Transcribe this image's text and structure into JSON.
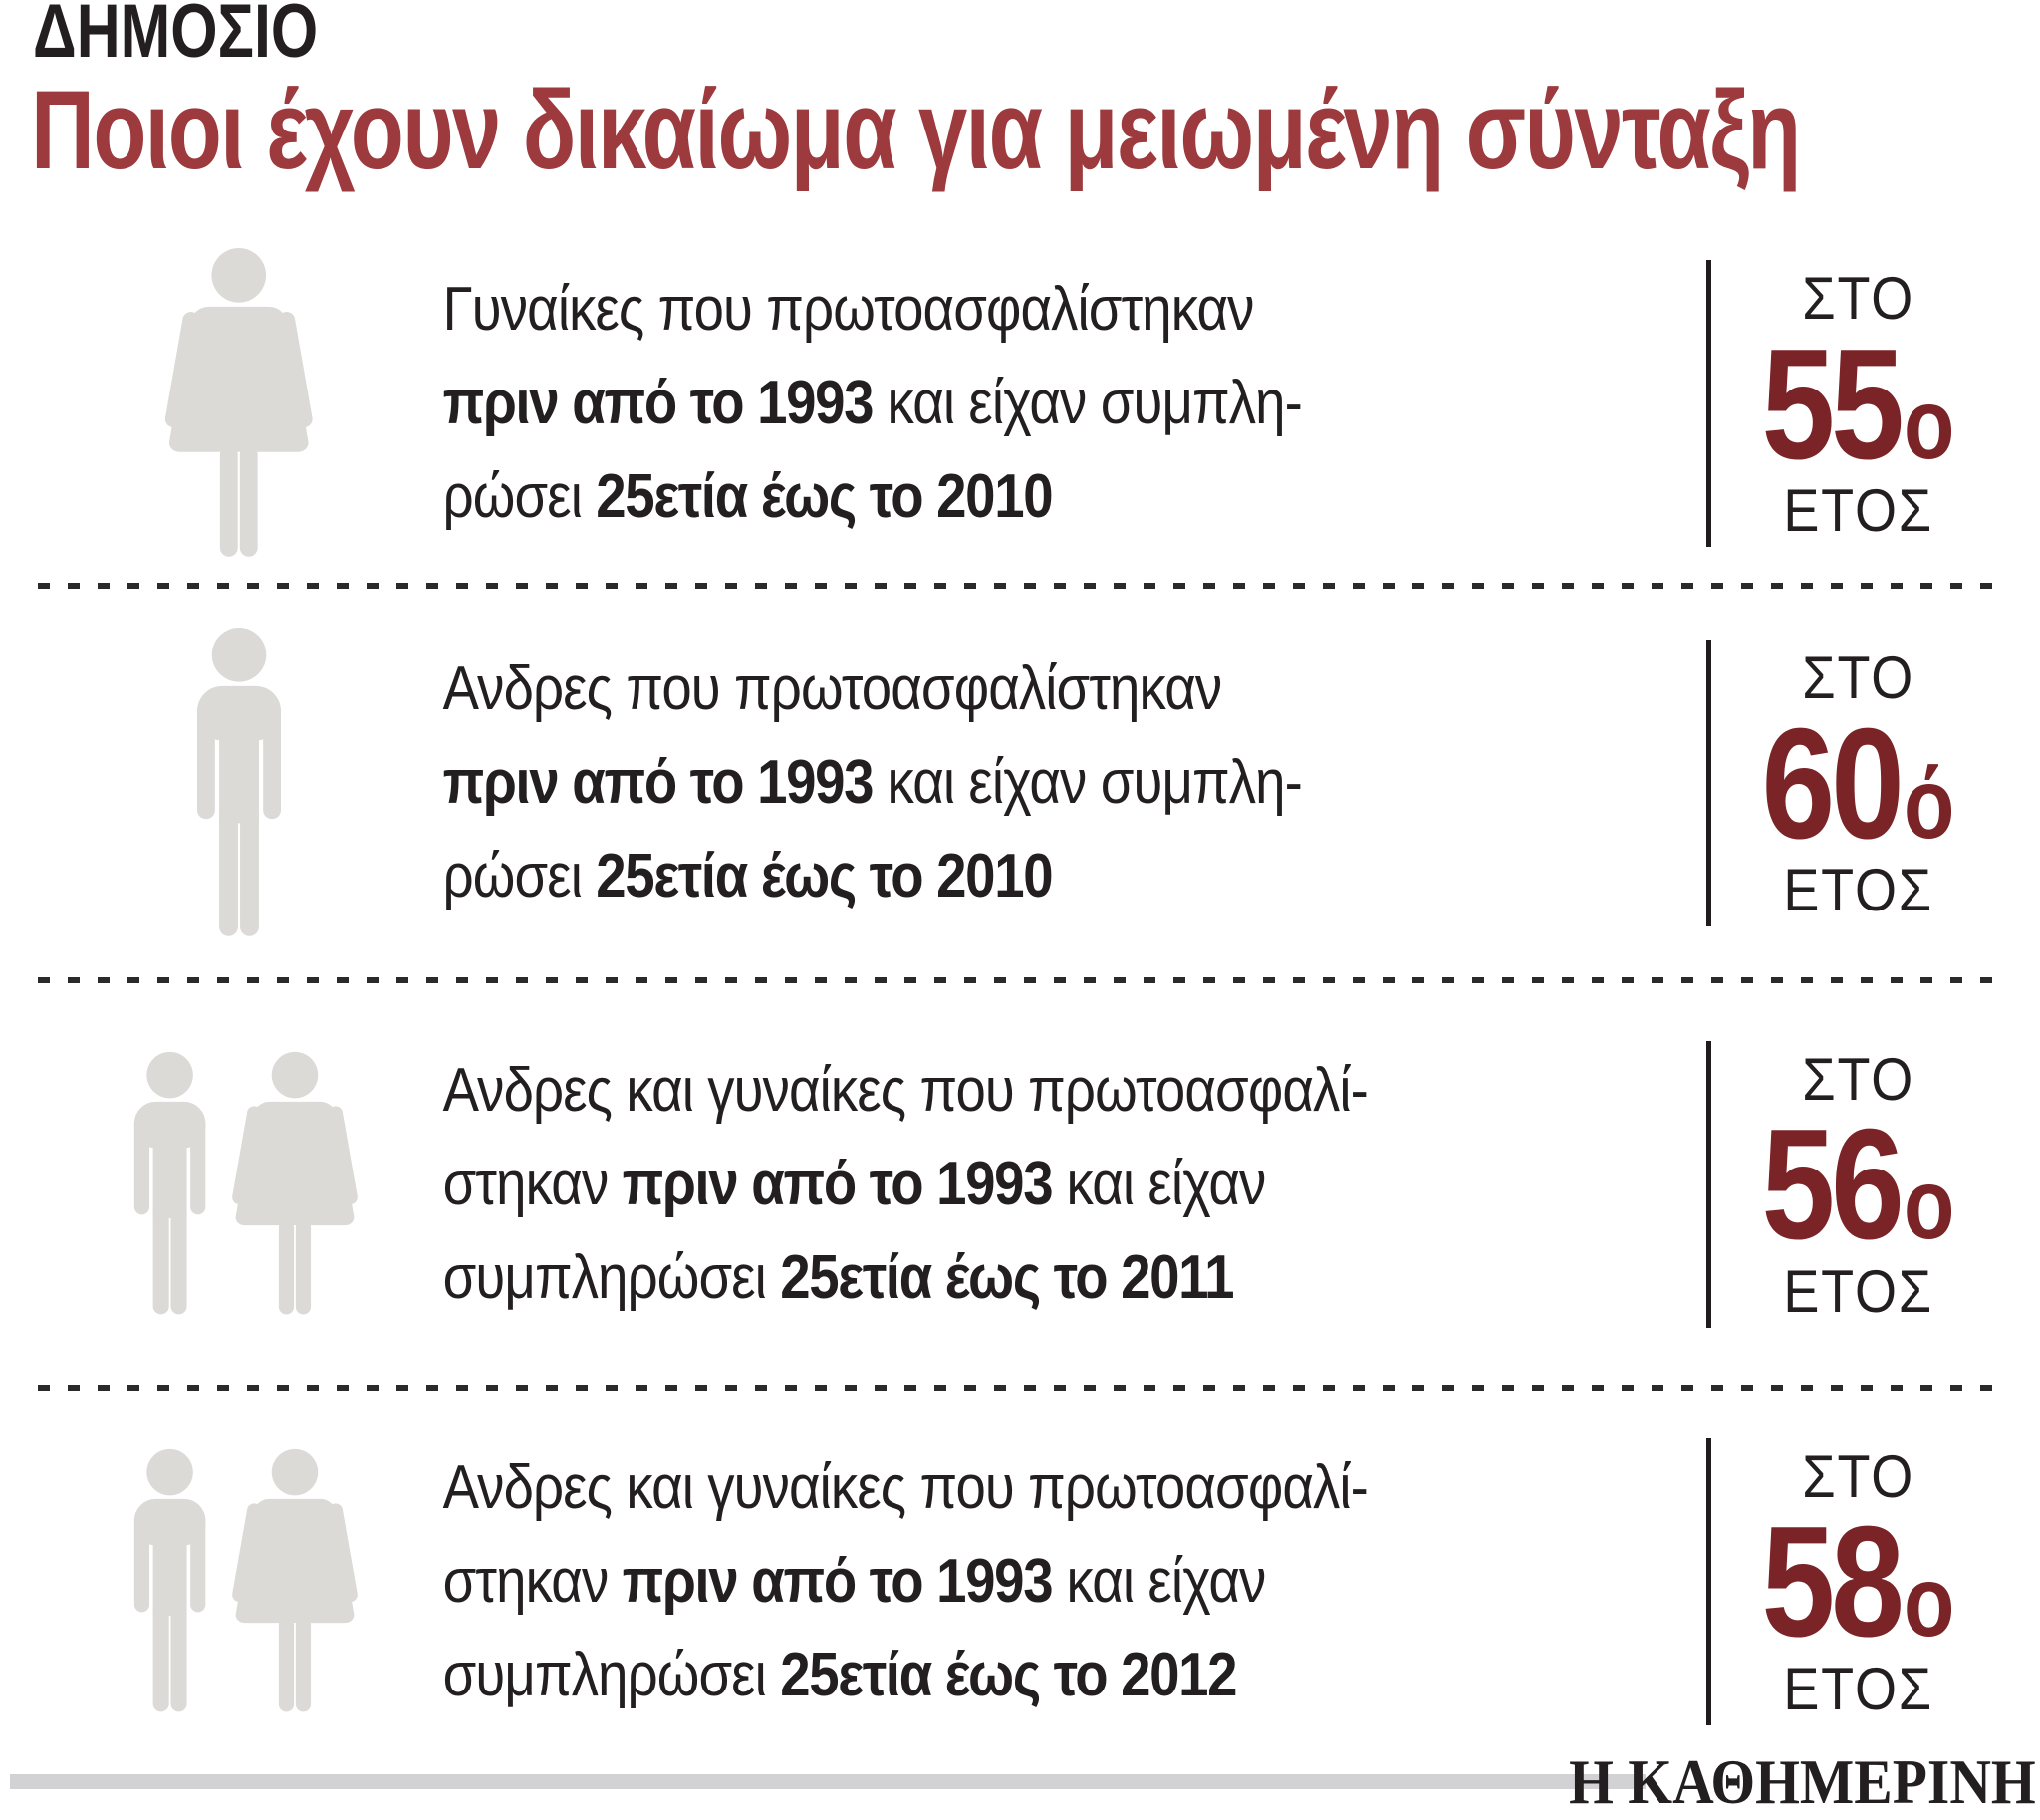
{
  "kicker": "ΔΗΜΟΣΙΟ",
  "title": "Ποιοι έχουν δικαίωμα για μειωμένη σύνταξη",
  "labels": {
    "sto": "ΣΤΟ",
    "etos": "ΕΤΟΣ"
  },
  "colors": {
    "title_red": "#9c3a3e",
    "number_maroon": "#7b2428",
    "text_black": "#231f20",
    "icon_gray": "#dbdad7",
    "footer_bar": "#d2d2d4"
  },
  "rows": [
    {
      "icon": "woman",
      "lines": [
        [
          {
            "t": "Γυναίκες που πρωτοασφαλίστηκαν",
            "b": false
          }
        ],
        [
          {
            "t": "πριν από το 1993",
            "b": true
          },
          {
            "t": " και είχαν συμπλη-",
            "b": false
          }
        ],
        [
          {
            "t": "ρώσει ",
            "b": false
          },
          {
            "t": "25ετία έως το 2010",
            "b": true
          }
        ]
      ],
      "sto": "ΣΤΟ",
      "age": "55",
      "age_suffix": "ο",
      "etos": "ΕΤΟΣ"
    },
    {
      "icon": "man",
      "lines": [
        [
          {
            "t": "Ανδρες που πρωτοασφαλίστηκαν",
            "b": false
          }
        ],
        [
          {
            "t": "πριν από το 1993",
            "b": true
          },
          {
            "t": " και είχαν συμπλη-",
            "b": false
          }
        ],
        [
          {
            "t": "ρώσει ",
            "b": false
          },
          {
            "t": "25ετία έως το 2010",
            "b": true
          }
        ]
      ],
      "sto": "ΣΤΟ",
      "age": "60",
      "age_suffix": "ό",
      "etos": "ΕΤΟΣ"
    },
    {
      "icon": "couple",
      "lines": [
        [
          {
            "t": "Ανδρες και γυναίκες που πρωτοασφαλί-",
            "b": false
          }
        ],
        [
          {
            "t": "στηκαν ",
            "b": false
          },
          {
            "t": "πριν από το 1993",
            "b": true
          },
          {
            "t": " και είχαν",
            "b": false
          }
        ],
        [
          {
            "t": "συμπληρώσει ",
            "b": false
          },
          {
            "t": "25ετία έως το 2011",
            "b": true
          }
        ]
      ],
      "sto": "ΣΤΟ",
      "age": "56",
      "age_suffix": "ο",
      "etos": "ΕΤΟΣ"
    },
    {
      "icon": "couple",
      "lines": [
        [
          {
            "t": "Ανδρες και γυναίκες που πρωτοασφαλί-",
            "b": false
          }
        ],
        [
          {
            "t": "στηκαν ",
            "b": false
          },
          {
            "t": "πριν από το 1993",
            "b": true
          },
          {
            "t": " και είχαν",
            "b": false
          }
        ],
        [
          {
            "t": "συμπληρώσει ",
            "b": false
          },
          {
            "t": "25ετία έως το 2012",
            "b": true
          }
        ]
      ],
      "sto": "ΣΤΟ",
      "age": "58",
      "age_suffix": "ο",
      "etos": "ΕΤΟΣ"
    }
  ],
  "footer": {
    "brand": "Η ΚΑΘΗΜΕΡΙΝΗ"
  }
}
